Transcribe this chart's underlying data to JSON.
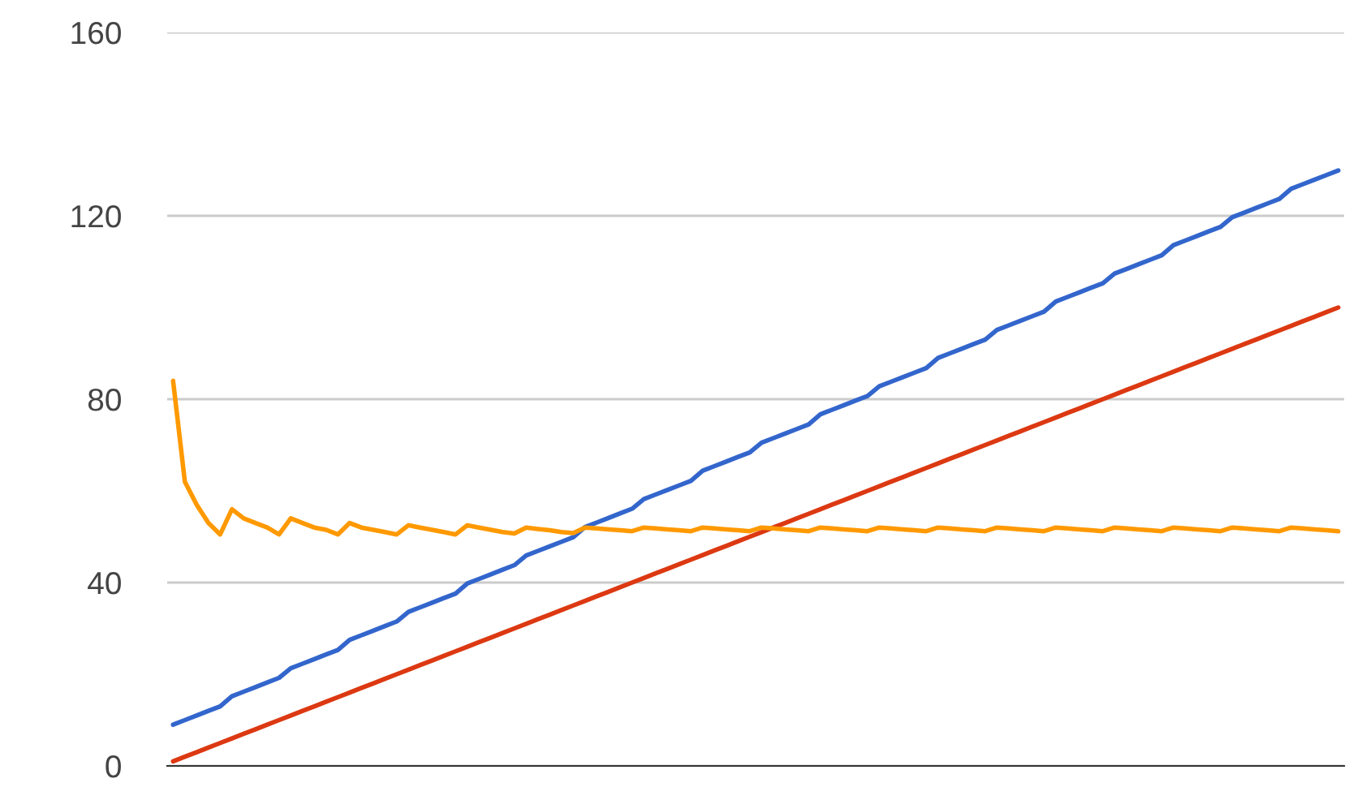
{
  "chart_data": {
    "type": "line",
    "categories": [
      null,
      null,
      null,
      null,
      null,
      null,
      null,
      null,
      null,
      null,
      null,
      null,
      null,
      null,
      null,
      null,
      null,
      null,
      null,
      null,
      null,
      null,
      null,
      null,
      null,
      null,
      null,
      null,
      null,
      null,
      null,
      null,
      null,
      null,
      null,
      null,
      null,
      null,
      null,
      null,
      null,
      null,
      null,
      null,
      null,
      null,
      null,
      null,
      null,
      null,
      null,
      null,
      null,
      null,
      null,
      null,
      null,
      null,
      null,
      null,
      null,
      null,
      null,
      null,
      null,
      null,
      null,
      null,
      null,
      null,
      null,
      null,
      null,
      null,
      null,
      null,
      null,
      null,
      null,
      null,
      null,
      null,
      null,
      null,
      null,
      null,
      null,
      null,
      null,
      null,
      null,
      null,
      null,
      null,
      null,
      null,
      null,
      null,
      null,
      null
    ],
    "series": [
      {
        "color": "#3366cc",
        "values": [
          9,
          10,
          11,
          12,
          13,
          15.2,
          16.2,
          17.2,
          18.2,
          19.2,
          21.3,
          22.3,
          23.3,
          24.3,
          25.3,
          27.5,
          28.5,
          29.5,
          30.5,
          31.5,
          33.6,
          34.6,
          35.6,
          36.6,
          37.6,
          39.8,
          40.8,
          41.8,
          42.8,
          43.8,
          45.9,
          46.9,
          47.9,
          48.9,
          49.9,
          52.1,
          53.1,
          54.1,
          55.1,
          56.1,
          58.2,
          59.2,
          60.2,
          61.2,
          62.2,
          64.4,
          65.4,
          66.4,
          67.4,
          68.4,
          70.5,
          71.5,
          72.5,
          73.5,
          74.5,
          76.7,
          77.7,
          78.7,
          79.7,
          80.7,
          82.8,
          83.8,
          84.8,
          85.8,
          86.8,
          89,
          90,
          91,
          92,
          93,
          95.1,
          96.1,
          97.1,
          98.1,
          99.1,
          101.3,
          102.3,
          103.3,
          104.3,
          105.3,
          107.4,
          108.4,
          109.4,
          110.4,
          111.4,
          113.6,
          114.6,
          115.6,
          116.6,
          117.6,
          119.7,
          120.7,
          121.7,
          122.7,
          123.7,
          125.9,
          126.9,
          127.9,
          128.9,
          129.9
        ]
      },
      {
        "color": "#dc3912",
        "values": [
          1,
          2,
          3,
          4,
          5,
          6,
          7,
          8,
          9,
          10,
          11,
          12,
          13,
          14,
          15,
          16,
          17,
          18,
          19,
          20,
          21,
          22,
          23,
          24,
          25,
          26,
          27,
          28,
          29,
          30,
          31,
          32,
          33,
          34,
          35,
          36,
          37,
          38,
          39,
          40,
          41,
          42,
          43,
          44,
          45,
          46,
          47,
          48,
          49,
          50,
          51,
          52,
          53,
          54,
          55,
          56,
          57,
          58,
          59,
          60,
          61,
          62,
          63,
          64,
          65,
          66,
          67,
          68,
          69,
          70,
          71,
          72,
          73,
          74,
          75,
          76,
          77,
          78,
          79,
          80,
          81,
          82,
          83,
          84,
          85,
          86,
          87,
          88,
          89,
          90,
          91,
          92,
          93,
          94,
          95,
          96,
          97,
          98,
          99,
          100
        ]
      },
      {
        "color": "#ff9900",
        "values": [
          84,
          62,
          57,
          53,
          50.5,
          56,
          54,
          53,
          52,
          50.5,
          54,
          53,
          52,
          51.5,
          50.5,
          53,
          52,
          51.5,
          51,
          50.5,
          52.5,
          52,
          51.5,
          51,
          50.5,
          52.5,
          52,
          51.5,
          51,
          50.7,
          52,
          51.7,
          51.4,
          51,
          50.8,
          52,
          51.8,
          51.6,
          51.4,
          51.2,
          52,
          51.8,
          51.6,
          51.4,
          51.2,
          52,
          51.8,
          51.6,
          51.4,
          51.2,
          52,
          51.8,
          51.6,
          51.4,
          51.2,
          52,
          51.8,
          51.6,
          51.4,
          51.2,
          52,
          51.8,
          51.6,
          51.4,
          51.2,
          52,
          51.8,
          51.6,
          51.4,
          51.2,
          52,
          51.8,
          51.6,
          51.4,
          51.2,
          52,
          51.8,
          51.6,
          51.4,
          51.2,
          52,
          51.8,
          51.6,
          51.4,
          51.2,
          52,
          51.8,
          51.6,
          51.4,
          51.2,
          52,
          51.8,
          51.6,
          51.4,
          51.2,
          52,
          51.8,
          51.6,
          51.4,
          51.2
        ]
      }
    ],
    "ylim": [
      0,
      160
    ],
    "yticks": [
      0,
      40,
      80,
      120,
      160
    ],
    "grid": "y",
    "tick_labels": "y"
  }
}
